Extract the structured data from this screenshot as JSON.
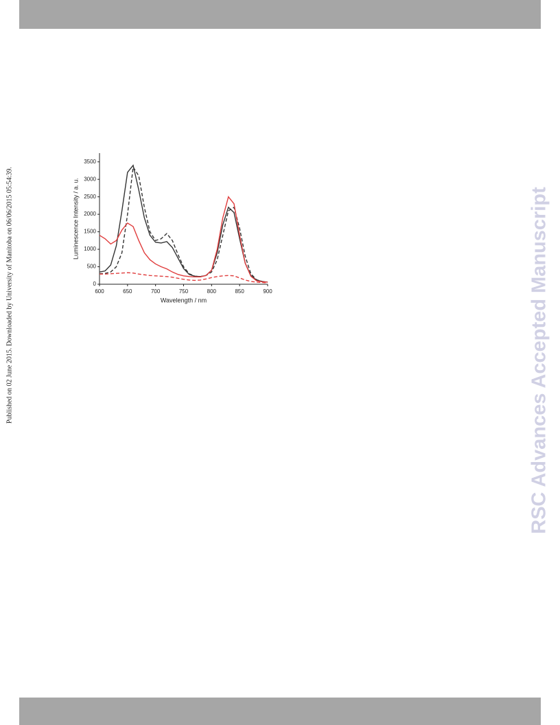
{
  "side_note": "Published on 02 June 2015. Downloaded by University of Manitoba on 06/06/2015 05:54:39.",
  "watermark": "RSC Advances Accepted Manuscript",
  "chart_data": {
    "type": "line",
    "x_label": "Wavelength / nm",
    "y_label": "Luminescence Intensity / a. u.",
    "x": [
      600,
      610,
      620,
      630,
      640,
      650,
      660,
      670,
      680,
      690,
      700,
      710,
      720,
      730,
      740,
      750,
      760,
      770,
      780,
      790,
      800,
      810,
      820,
      830,
      840,
      850,
      860,
      870,
      880,
      890,
      900
    ],
    "xlim": [
      600,
      900
    ],
    "xticks": [
      600,
      650,
      700,
      750,
      800,
      850,
      900
    ],
    "ylim": [
      0,
      3750
    ],
    "yticks": [
      0,
      500,
      1000,
      1500,
      2000,
      2500,
      3000,
      3500
    ],
    "series": [
      {
        "color": "#333333",
        "linestyle": "solid",
        "values": [
          350,
          380,
          550,
          1100,
          2100,
          3200,
          3400,
          2700,
          1900,
          1400,
          1200,
          1180,
          1220,
          1050,
          750,
          450,
          280,
          230,
          220,
          250,
          400,
          900,
          1700,
          2200,
          2050,
          1300,
          600,
          250,
          120,
          80,
          60
        ]
      },
      {
        "color": "#333333",
        "linestyle": "dashed",
        "values": [
          300,
          310,
          350,
          500,
          900,
          2000,
          3350,
          3100,
          2200,
          1500,
          1250,
          1300,
          1450,
          1250,
          850,
          500,
          300,
          230,
          220,
          250,
          350,
          700,
          1400,
          2100,
          2200,
          1600,
          800,
          300,
          130,
          80,
          60
        ]
      },
      {
        "color": "#e03c3c",
        "linestyle": "solid",
        "values": [
          1400,
          1300,
          1150,
          1250,
          1550,
          1750,
          1650,
          1250,
          900,
          700,
          580,
          500,
          440,
          350,
          280,
          240,
          220,
          210,
          210,
          250,
          400,
          1000,
          1900,
          2500,
          2300,
          1400,
          600,
          230,
          100,
          70,
          60
        ]
      },
      {
        "color": "#e03c3c",
        "linestyle": "dashed",
        "values": [
          290,
          290,
          300,
          310,
          320,
          330,
          320,
          290,
          270,
          250,
          240,
          230,
          220,
          200,
          170,
          140,
          120,
          110,
          120,
          150,
          190,
          220,
          240,
          250,
          240,
          180,
          120,
          80,
          60,
          50,
          40
        ]
      }
    ]
  }
}
